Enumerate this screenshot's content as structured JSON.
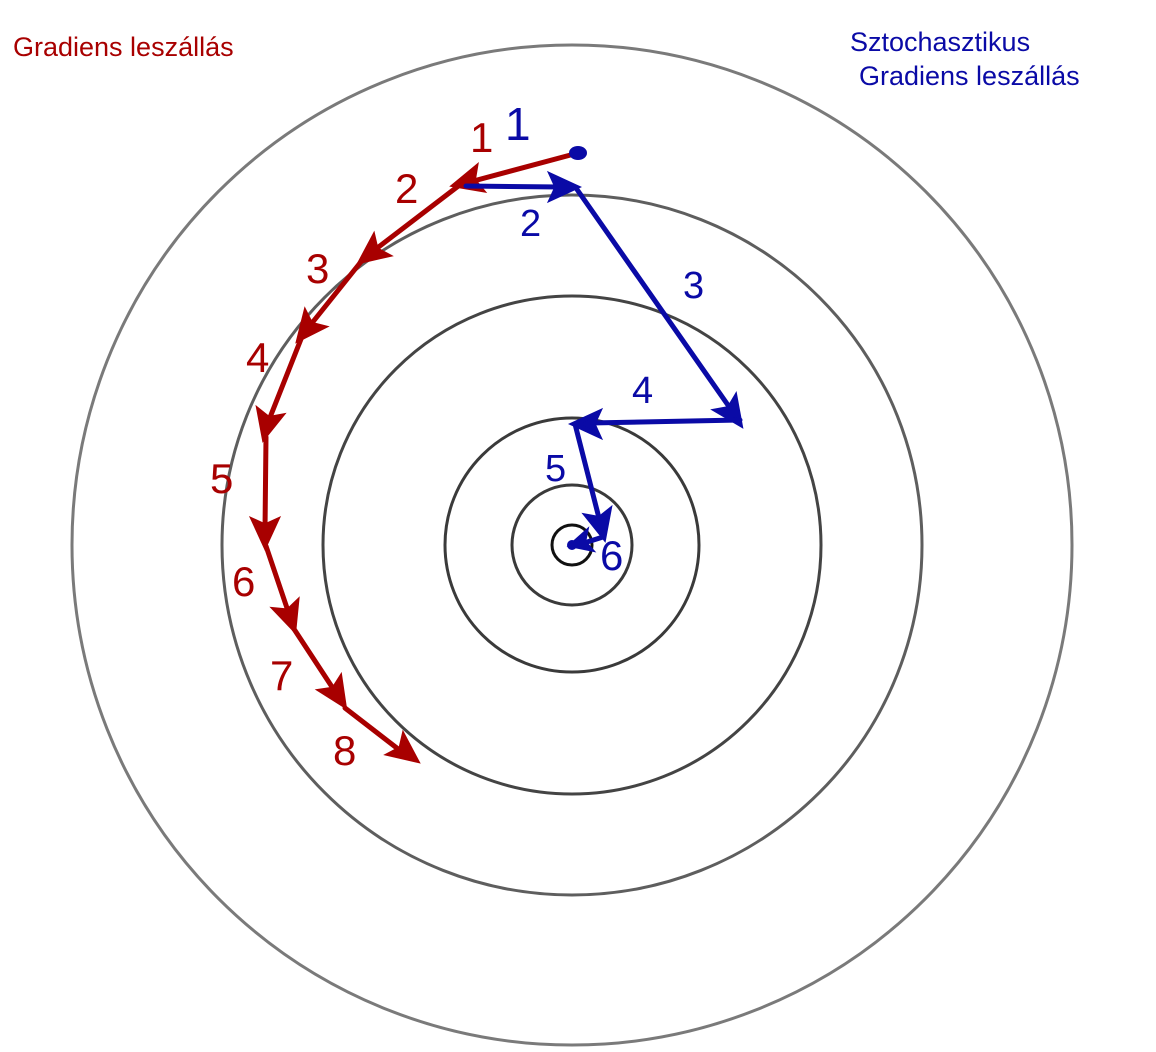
{
  "colors": {
    "gd": "#a80000",
    "sgd": "#0a0aa6",
    "contour_outer": "#7a7a7a",
    "contour_inner": "#3a3a3a"
  },
  "titles": {
    "gd": "Gradiens leszállás",
    "sgd_line1": "Sztochasztikus",
    "sgd_line2": "Gradiens leszállás"
  },
  "gd_step_labels": [
    "1",
    "2",
    "3",
    "4",
    "5",
    "6",
    "7",
    "8"
  ],
  "sgd_step_labels": [
    "1",
    "2",
    "3",
    "4",
    "5",
    "6"
  ]
}
